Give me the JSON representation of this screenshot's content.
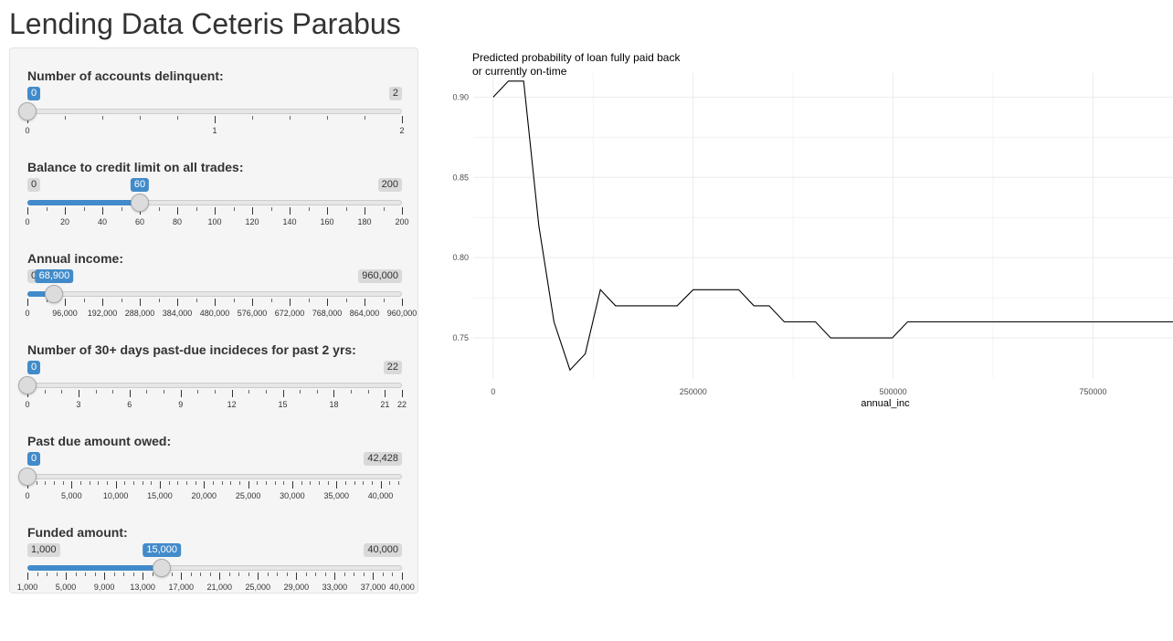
{
  "page": {
    "title": "Lending Data Ceteris Parabus"
  },
  "sliders": [
    {
      "id": "delinq",
      "label": "Number of accounts delinquent:",
      "min": 0,
      "max": 2,
      "value": 0,
      "min_label": "0",
      "max_label": "2",
      "value_label": "0",
      "fill": false,
      "ticks": [
        {
          "v": 0,
          "t": "0"
        },
        {
          "v": 1,
          "t": "1"
        },
        {
          "v": 2,
          "t": "2"
        }
      ],
      "minor_step": 0.2
    },
    {
      "id": "revol",
      "label": "Balance to credit limit on all trades:",
      "min": 0,
      "max": 200,
      "value": 60,
      "min_label": "0",
      "max_label": "200",
      "value_label": "60",
      "fill": true,
      "ticks": [
        {
          "v": 0,
          "t": "0"
        },
        {
          "v": 20,
          "t": "20"
        },
        {
          "v": 40,
          "t": "40"
        },
        {
          "v": 60,
          "t": "60"
        },
        {
          "v": 80,
          "t": "80"
        },
        {
          "v": 100,
          "t": "100"
        },
        {
          "v": 120,
          "t": "120"
        },
        {
          "v": 140,
          "t": "140"
        },
        {
          "v": 160,
          "t": "160"
        },
        {
          "v": 180,
          "t": "180"
        },
        {
          "v": 200,
          "t": "200"
        }
      ],
      "minor_step": 10
    },
    {
      "id": "inc",
      "label": "Annual income:",
      "min": 0,
      "max": 960000,
      "value": 68900,
      "min_label": "0",
      "max_label": "960,000",
      "value_label": "68,900",
      "fill": true,
      "ticks": [
        {
          "v": 0,
          "t": "0"
        },
        {
          "v": 96000,
          "t": "96,000"
        },
        {
          "v": 192000,
          "t": "192,000"
        },
        {
          "v": 288000,
          "t": "288,000"
        },
        {
          "v": 384000,
          "t": "384,000"
        },
        {
          "v": 480000,
          "t": "480,000"
        },
        {
          "v": 576000,
          "t": "576,000"
        },
        {
          "v": 672000,
          "t": "672,000"
        },
        {
          "v": 768000,
          "t": "768,000"
        },
        {
          "v": 864000,
          "t": "864,000"
        },
        {
          "v": 960000,
          "t": "960,000"
        }
      ],
      "minor_step": 48000
    },
    {
      "id": "pastdue",
      "label": "Number of 30+ days past-due incideces for past 2 yrs:",
      "min": 0,
      "max": 22,
      "value": 0,
      "min_label": "0",
      "max_label": "22",
      "value_label": "0",
      "fill": false,
      "ticks": [
        {
          "v": 0,
          "t": "0"
        },
        {
          "v": 3,
          "t": "3"
        },
        {
          "v": 6,
          "t": "6"
        },
        {
          "v": 9,
          "t": "9"
        },
        {
          "v": 12,
          "t": "12"
        },
        {
          "v": 15,
          "t": "15"
        },
        {
          "v": 18,
          "t": "18"
        },
        {
          "v": 21,
          "t": "21"
        },
        {
          "v": 22,
          "t": "22"
        }
      ],
      "minor_step": 1
    },
    {
      "id": "owed",
      "label": "Past due amount owed:",
      "min": 0,
      "max": 42428,
      "value": 0,
      "min_label": "0",
      "max_label": "42,428",
      "value_label": "0",
      "fill": false,
      "ticks": [
        {
          "v": 0,
          "t": "0"
        },
        {
          "v": 5000,
          "t": "5,000"
        },
        {
          "v": 10000,
          "t": "10,000"
        },
        {
          "v": 15000,
          "t": "15,000"
        },
        {
          "v": 20000,
          "t": "20,000"
        },
        {
          "v": 25000,
          "t": "25,000"
        },
        {
          "v": 30000,
          "t": "30,000"
        },
        {
          "v": 35000,
          "t": "35,000"
        },
        {
          "v": 40000,
          "t": "40,000"
        }
      ],
      "minor_step": 1000
    },
    {
      "id": "funded",
      "label": "Funded amount:",
      "min": 1000,
      "max": 40000,
      "value": 15000,
      "min_label": "1,000",
      "max_label": "40,000",
      "value_label": "15,000",
      "fill": true,
      "ticks": [
        {
          "v": 1000,
          "t": "1,000"
        },
        {
          "v": 5000,
          "t": "5,000"
        },
        {
          "v": 9000,
          "t": "9,000"
        },
        {
          "v": 13000,
          "t": "13,000"
        },
        {
          "v": 17000,
          "t": "17,000"
        },
        {
          "v": 21000,
          "t": "21,000"
        },
        {
          "v": 25000,
          "t": "25,000"
        },
        {
          "v": 29000,
          "t": "29,000"
        },
        {
          "v": 33000,
          "t": "33,000"
        },
        {
          "v": 37000,
          "t": "37,000"
        },
        {
          "v": 40000,
          "t": "40,000"
        }
      ],
      "minor_step": 1000
    }
  ],
  "colors": {
    "accent": "#428bca",
    "line": "#000000",
    "grid": "#ebebeb"
  },
  "chart_data": {
    "type": "line",
    "title": "Predicted probability of loan fully paid back\nor currently on-time",
    "xlabel": "annual_inc",
    "ylabel": "",
    "xlim": [
      -25000,
      850000
    ],
    "ylim": [
      0.725,
      0.915
    ],
    "grid": true,
    "x_ticks": [
      {
        "v": 0,
        "t": "0"
      },
      {
        "v": 250000,
        "t": "250000"
      },
      {
        "v": 500000,
        "t": "500000"
      },
      {
        "v": 750000,
        "t": "750000"
      }
    ],
    "y_ticks": [
      {
        "v": 0.75,
        "t": "0.75"
      },
      {
        "v": 0.8,
        "t": "0.80"
      },
      {
        "v": 0.85,
        "t": "0.85"
      },
      {
        "v": 0.9,
        "t": "0.90"
      }
    ],
    "series": [
      {
        "x": [
          0,
          19000,
          38000,
          57000,
          76000,
          96000,
          115000,
          134000,
          153000,
          172000,
          192000,
          211000,
          230000,
          250000,
          269000,
          288000,
          307000,
          326000,
          345000,
          364000,
          384000,
          403000,
          422000,
          441000,
          460000,
          480000,
          499000,
          518000,
          537000,
          556000,
          576000,
          600000,
          650000,
          700000,
          750000,
          800000,
          850000
        ],
        "y": [
          0.9,
          0.91,
          0.91,
          0.82,
          0.76,
          0.73,
          0.74,
          0.78,
          0.77,
          0.77,
          0.77,
          0.77,
          0.77,
          0.78,
          0.78,
          0.78,
          0.78,
          0.77,
          0.77,
          0.76,
          0.76,
          0.76,
          0.75,
          0.75,
          0.75,
          0.75,
          0.75,
          0.76,
          0.76,
          0.76,
          0.76,
          0.76,
          0.76,
          0.76,
          0.76,
          0.76,
          0.76
        ]
      }
    ]
  }
}
